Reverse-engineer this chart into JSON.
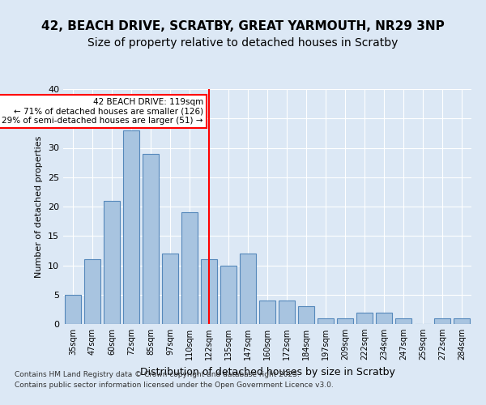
{
  "title1": "42, BEACH DRIVE, SCRATBY, GREAT YARMOUTH, NR29 3NP",
  "title2": "Size of property relative to detached houses in Scratby",
  "xlabel": "Distribution of detached houses by size in Scratby",
  "ylabel": "Number of detached properties",
  "bins": [
    "35sqm",
    "47sqm",
    "60sqm",
    "72sqm",
    "85sqm",
    "97sqm",
    "110sqm",
    "122sqm",
    "135sqm",
    "147sqm",
    "160sqm",
    "172sqm",
    "184sqm",
    "197sqm",
    "209sqm",
    "222sqm",
    "234sqm",
    "247sqm",
    "259sqm",
    "272sqm",
    "284sqm"
  ],
  "counts": [
    5,
    11,
    21,
    33,
    29,
    12,
    19,
    11,
    10,
    12,
    4,
    4,
    3,
    1,
    1,
    2,
    2,
    1,
    0,
    1,
    1
  ],
  "bar_color": "#a8c4e0",
  "bar_edge_color": "#5588bb",
  "vline_x": 7,
  "vline_color": "red",
  "annotation_text": "42 BEACH DRIVE: 119sqm\n← 71% of detached houses are smaller (126)\n29% of semi-detached houses are larger (51) →",
  "annotation_box_color": "white",
  "annotation_box_edge": "red",
  "ylim": [
    0,
    40
  ],
  "yticks": [
    0,
    5,
    10,
    15,
    20,
    25,
    30,
    35,
    40
  ],
  "footnote1": "Contains HM Land Registry data © Crown copyright and database right 2025.",
  "footnote2": "Contains public sector information licensed under the Open Government Licence v3.0.",
  "bg_color": "#dce8f5",
  "plot_bg_color": "#dce8f5",
  "title1_fontsize": 11,
  "title2_fontsize": 10
}
